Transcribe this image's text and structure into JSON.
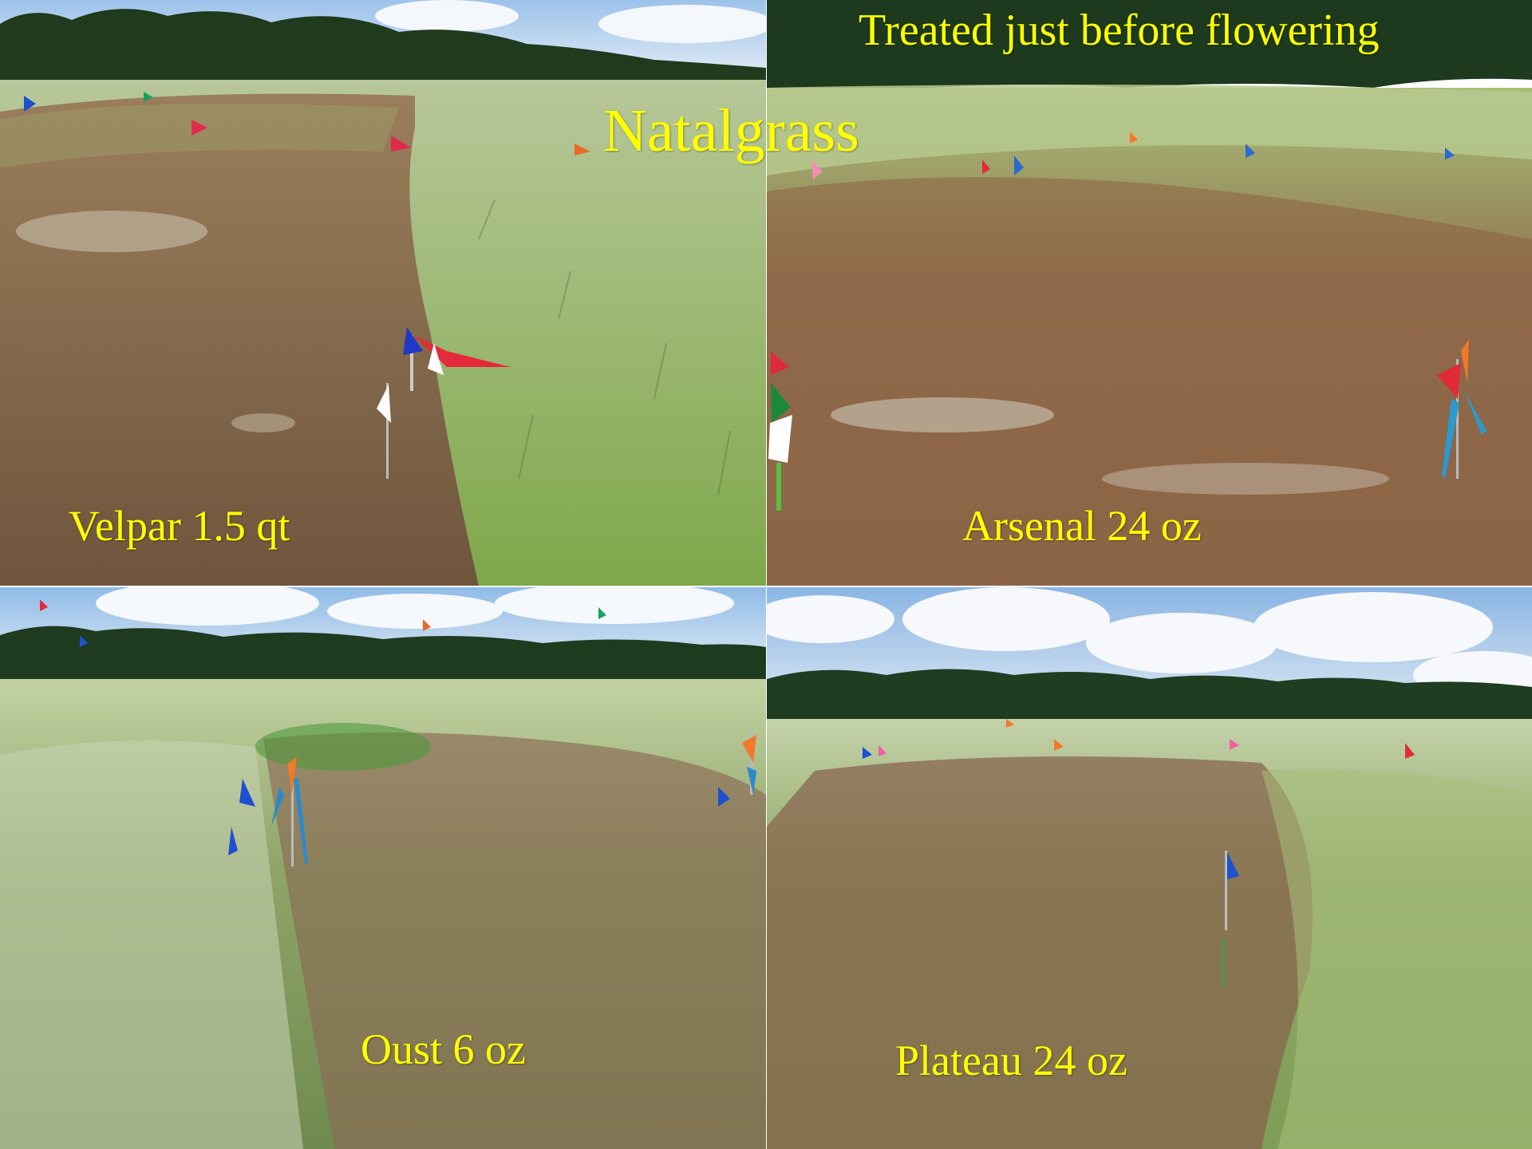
{
  "title": "Natalgrass",
  "subtitle": "Treated just before flowering",
  "panels": [
    {
      "label": "Velpar 1.5 qt",
      "icon": "field-photo-icon",
      "colors": {
        "treated": "#8a6e4e",
        "untreated": "#8fb04f",
        "sky": "#cfe0f2",
        "trees": "#1f3a1c"
      }
    },
    {
      "label": "Arsenal 24 oz",
      "icon": "field-photo-icon",
      "colors": {
        "treated": "#8e6044",
        "untreated": "#9cbb60",
        "sky": "#e6eef5",
        "trees": "#1d3a1e"
      }
    },
    {
      "label": "Oust 6 oz",
      "icon": "field-photo-icon",
      "colors": {
        "treated": "#8a6a55",
        "untreated": "#a9c07a",
        "sky": "#b9d4ef",
        "trees": "#1e3b1f"
      }
    },
    {
      "label": "Plateau 24 oz",
      "icon": "field-photo-icon",
      "colors": {
        "treated": "#86604a",
        "untreated": "#97b766",
        "sky": "#bcd6f0",
        "trees": "#1f3d20"
      }
    }
  ],
  "text_color": "#ffff00"
}
